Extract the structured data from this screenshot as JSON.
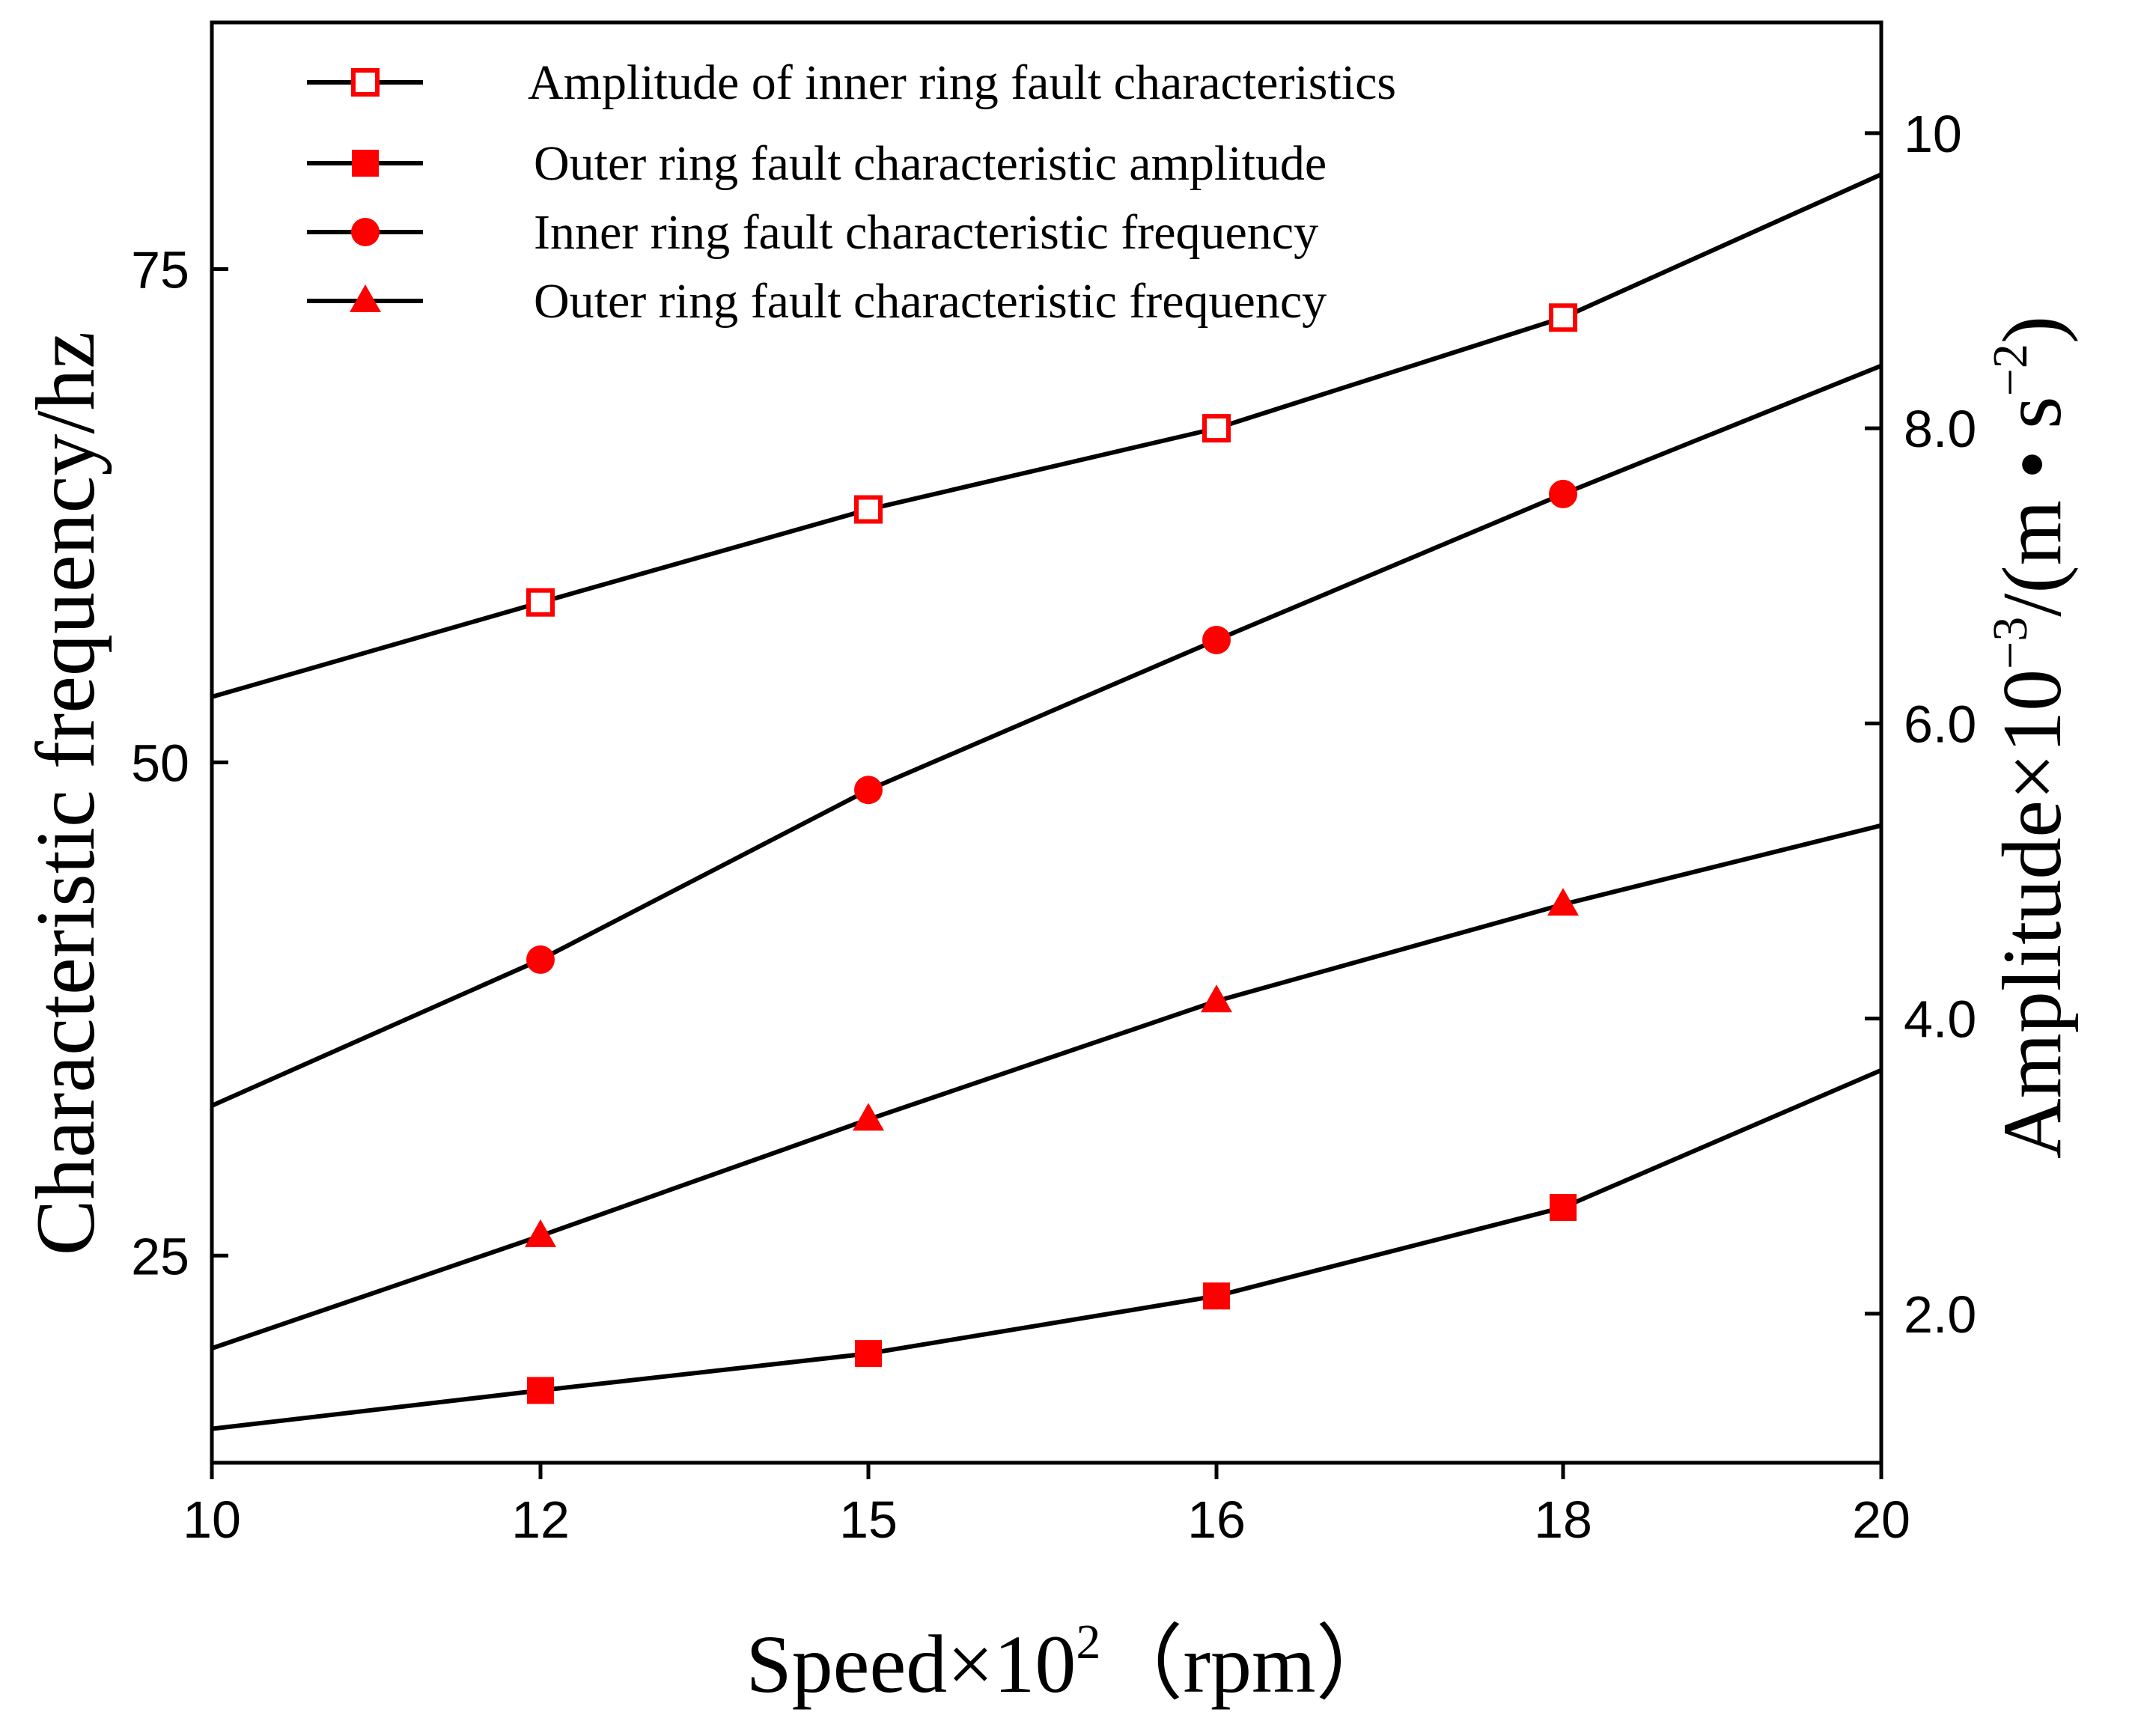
{
  "chart_data": {
    "type": "line",
    "x_tick_labels": [
      "10",
      "12",
      "15",
      "16",
      "18",
      "20"
    ],
    "x_tick_values": [
      10,
      12,
      15,
      16,
      18,
      20
    ],
    "xlabel": {
      "text": "Speed×10",
      "sup": "2",
      "unit": "（rpm）"
    },
    "ylabel_left": "Characteristic frequency/hz",
    "ylabel_right": {
      "prefix": "Amplitude×10",
      "sup1": "−3",
      "mid": "/(m • s",
      "sup2": "−2",
      "suffix": ")"
    },
    "y_left_range": [
      14.5,
      87.5
    ],
    "y_left_ticks": [
      "25",
      "50",
      "75"
    ],
    "y_left_tick_values": [
      25,
      50,
      75
    ],
    "y_right_range": [
      0.99,
      10.75
    ],
    "y_right_ticks": [
      "2.0",
      "4.0",
      "6.0",
      "8.0",
      "10"
    ],
    "y_right_tick_values": [
      2.0,
      4.0,
      6.0,
      8.0,
      10
    ],
    "legend": [
      "Amplitude of inner ring fault characteristics",
      "Outer ring fault characteristic amplitude",
      "Inner ring fault characteristic frequency",
      "Outer ring fault characteristic frequency"
    ],
    "series": [
      {
        "name": "Amplitude of inner ring fault characteristics",
        "axis": "right",
        "marker": "square-open",
        "line_x": [
          10,
          12,
          15,
          16,
          18,
          20
        ],
        "line_y": [
          6.18,
          6.82,
          7.45,
          8.0,
          8.75,
          9.72
        ],
        "x": [
          12,
          15,
          16,
          18
        ],
        "y": [
          6.82,
          7.45,
          8.0,
          8.75
        ]
      },
      {
        "name": "Outer ring fault characteristic amplitude",
        "axis": "right",
        "marker": "square-filled",
        "line_x": [
          10,
          12,
          15,
          16,
          18,
          20
        ],
        "line_y": [
          1.22,
          1.48,
          1.73,
          2.12,
          2.72,
          3.65
        ],
        "x": [
          12,
          15,
          16,
          18
        ],
        "y": [
          1.48,
          1.73,
          2.12,
          2.72
        ]
      },
      {
        "name": "Inner ring fault characteristic frequency",
        "axis": "left",
        "marker": "circle-filled",
        "line_x": [
          10,
          12,
          15,
          16,
          18,
          20
        ],
        "line_y": [
          32.6,
          40.0,
          48.6,
          56.2,
          63.6,
          70.1
        ],
        "x": [
          12,
          15,
          16,
          18
        ],
        "y": [
          40.0,
          48.6,
          56.2,
          63.6
        ]
      },
      {
        "name": "Outer ring fault characteristic frequency",
        "axis": "left",
        "marker": "triangle-filled",
        "line_x": [
          10,
          12,
          15,
          16,
          18,
          20
        ],
        "line_y": [
          20.3,
          26.0,
          31.9,
          37.9,
          42.8,
          46.8
        ],
        "x": [
          12,
          15,
          16,
          18
        ],
        "y": [
          26.0,
          31.9,
          37.9,
          42.8
        ]
      }
    ]
  },
  "colors": {
    "marker": "#ff0000",
    "line": "#000000",
    "axis": "#000000"
  }
}
